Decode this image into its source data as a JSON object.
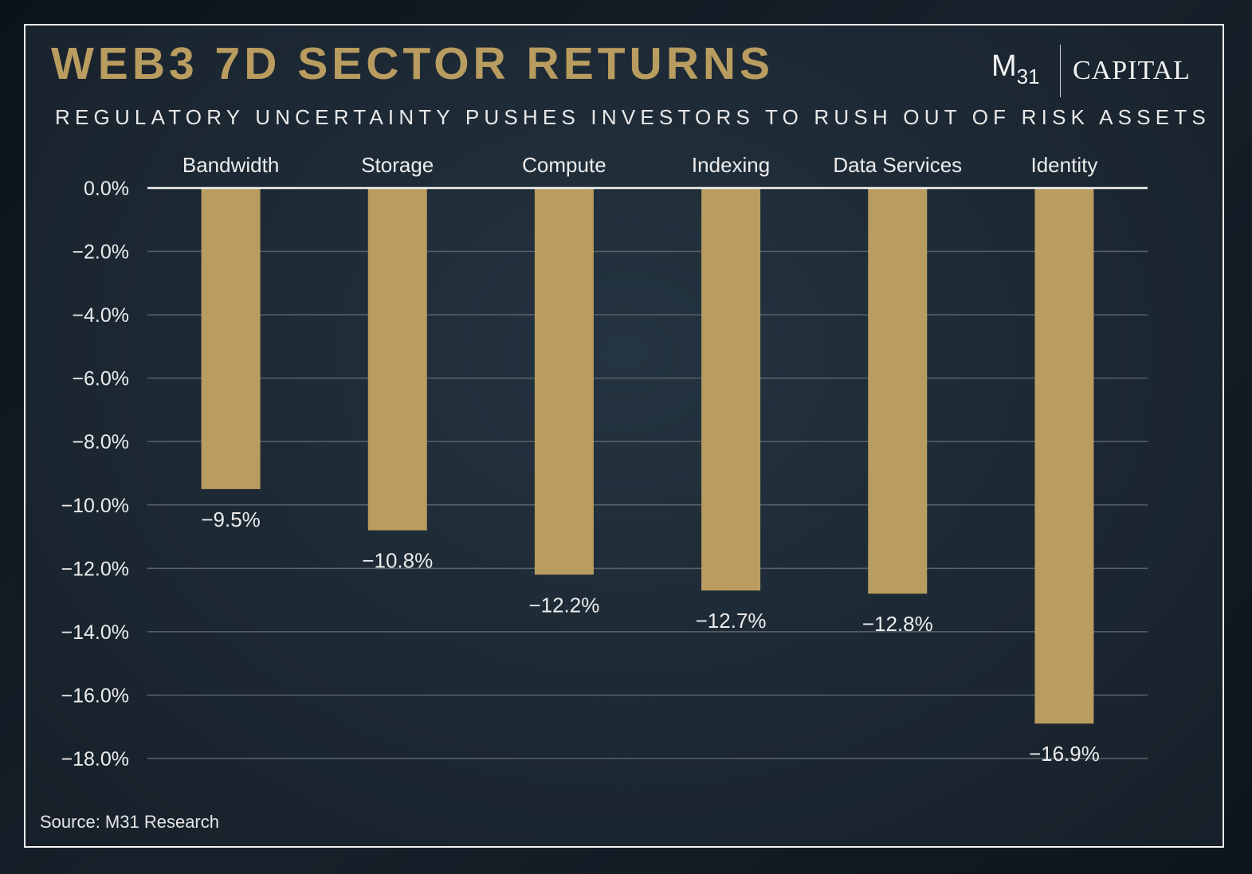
{
  "header": {
    "title": "WEB3 7D SECTOR RETURNS",
    "subtitle": "REGULATORY UNCERTAINTY PUSHES INVESTORS TO RUSH OUT OF RISK ASSETS"
  },
  "logo": {
    "mark": "M",
    "mark_sub": "31",
    "wordmark": "CAPITAL"
  },
  "footer": {
    "source": "Source: M31 Research"
  },
  "colors": {
    "bar": "#b99c5f",
    "title": "#b99c5f",
    "text": "#ececec",
    "grid": "#5a636b",
    "zero_line": "#f2f2f2",
    "background": "#1c2833"
  },
  "chart_data": {
    "type": "bar",
    "title": "WEB3 7D SECTOR RETURNS",
    "subtitle": "REGULATORY UNCERTAINTY PUSHES INVESTORS TO RUSH OUT OF RISK ASSETS",
    "categories": [
      "Bandwidth",
      "Storage",
      "Compute",
      "Indexing",
      "Data Services",
      "Identity"
    ],
    "values": [
      -9.5,
      -10.8,
      -12.2,
      -12.7,
      -12.8,
      -16.9
    ],
    "data_labels": [
      "−9.5%",
      "−10.8%",
      "−12.2%",
      "−12.7%",
      "−12.8%",
      "−16.9%"
    ],
    "y_ticks": [
      0,
      -2,
      -4,
      -6,
      -8,
      -10,
      -12,
      -14,
      -16,
      -18
    ],
    "y_tick_labels": [
      "0.0%",
      "−2.0%",
      "−4.0%",
      "−6.0%",
      "−8.0%",
      "−10.0%",
      "−12.0%",
      "−14.0%",
      "−16.0%",
      "−18.0%"
    ],
    "ylim": [
      -18,
      0
    ],
    "xlabel": "",
    "ylabel": "",
    "grid": true,
    "category_labels_position": "top",
    "legend": false
  }
}
